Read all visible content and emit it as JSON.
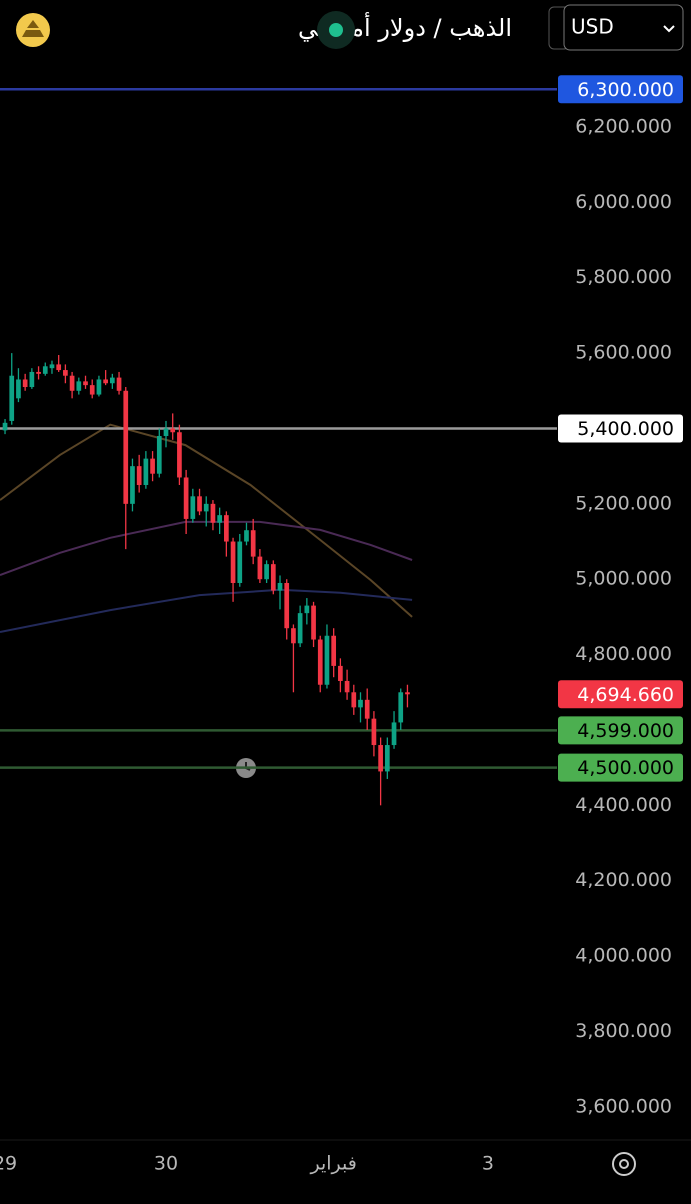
{
  "header": {
    "title": "الذهب / دولار أمريكي",
    "currency": "USD"
  },
  "chart_data": {
    "type": "candlestick",
    "open": [
      5395,
      5420,
      5480,
      5530,
      5510,
      5550,
      5545,
      5560,
      5570,
      5555,
      5540,
      5500,
      5525,
      5515,
      5490,
      5530,
      5520,
      5535,
      5500,
      5200,
      5300,
      5250,
      5320,
      5280,
      5380,
      5400,
      5390,
      5270,
      5160,
      5220,
      5180,
      5200,
      5150,
      5170,
      5100,
      4990,
      5100,
      5130,
      5060,
      5000,
      5040,
      4970,
      4990,
      4870,
      4830,
      4910,
      4930,
      4840,
      4720,
      4850,
      4770,
      4730,
      4700,
      4660,
      4680,
      4630,
      4560,
      4490,
      4560,
      4620,
      4700
    ],
    "high": [
      5425,
      5600,
      5560,
      5545,
      5560,
      5565,
      5575,
      5580,
      5595,
      5570,
      5550,
      5535,
      5540,
      5530,
      5540,
      5555,
      5545,
      5550,
      5510,
      5320,
      5330,
      5340,
      5340,
      5400,
      5420,
      5440,
      5410,
      5290,
      5240,
      5240,
      5220,
      5210,
      5190,
      5180,
      5110,
      5120,
      5150,
      5160,
      5080,
      5050,
      5050,
      5010,
      5000,
      4880,
      4930,
      4950,
      4940,
      4850,
      4880,
      4870,
      4790,
      4760,
      4720,
      4700,
      4710,
      4650,
      4580,
      4580,
      4650,
      4710,
      4720
    ],
    "low": [
      5385,
      5410,
      5470,
      5500,
      5505,
      5530,
      5540,
      5545,
      5550,
      5520,
      5480,
      5490,
      5505,
      5480,
      5485,
      5515,
      5505,
      5490,
      5080,
      5180,
      5230,
      5240,
      5260,
      5270,
      5350,
      5370,
      5250,
      5120,
      5150,
      5170,
      5140,
      5130,
      5120,
      5060,
      4940,
      4980,
      5090,
      5040,
      4990,
      4990,
      4960,
      4920,
      4840,
      4700,
      4820,
      4880,
      4820,
      4700,
      4710,
      4740,
      4700,
      4680,
      4640,
      4620,
      4600,
      4530,
      4400,
      4470,
      4550,
      4600,
      4660
    ],
    "close": [
      5415,
      5540,
      5530,
      5510,
      5550,
      5545,
      5565,
      5570,
      5555,
      5540,
      5500,
      5525,
      5515,
      5490,
      5530,
      5520,
      5535,
      5500,
      5200,
      5300,
      5250,
      5320,
      5280,
      5380,
      5400,
      5390,
      5270,
      5160,
      5220,
      5180,
      5200,
      5150,
      5170,
      5100,
      4990,
      5100,
      5130,
      5060,
      5000,
      5040,
      4970,
      4990,
      4870,
      4830,
      4910,
      4930,
      4840,
      4720,
      4850,
      4770,
      4730,
      4700,
      4660,
      4680,
      4630,
      4560,
      4490,
      4560,
      4620,
      4700,
      4694.66
    ],
    "up_color": "#0ea386",
    "down_color": "#f23645",
    "last_price_label": "4,694.660",
    "ylim": [
      3512,
      6391
    ],
    "yticks": [
      {
        "value": 3600,
        "label": "3,600.000"
      },
      {
        "value": 3800,
        "label": "3,800.000"
      },
      {
        "value": 4000,
        "label": "4,000.000"
      },
      {
        "value": 4200,
        "label": "4,200.000"
      },
      {
        "value": 4400,
        "label": "4,400.000"
      },
      {
        "value": 4600,
        "label": "4,600.000"
      },
      {
        "value": 4800,
        "label": "4,800.000"
      },
      {
        "value": 5000,
        "label": "5,000.000"
      },
      {
        "value": 5200,
        "label": "5,200.000"
      },
      {
        "value": 5400,
        "label": "5,400.000"
      },
      {
        "value": 5600,
        "label": "5,600.000"
      },
      {
        "value": 5800,
        "label": "5,800.000"
      },
      {
        "value": 6000,
        "label": "6,000.000"
      },
      {
        "value": 6200,
        "label": "6,200.000"
      }
    ],
    "xlim": [
      -0.75,
      82
    ],
    "xticks": [
      {
        "value": 0,
        "label": "29"
      },
      {
        "value": 24,
        "label": "30"
      },
      {
        "value": 49,
        "label": "فبراير"
      },
      {
        "value": 72,
        "label": "3"
      }
    ],
    "price_lines": [
      {
        "value": 6300,
        "label": "6,300.000",
        "color": "#2b3aa0",
        "label_bg": "#1f57e0",
        "label_color": "#ffffff"
      },
      {
        "value": 5400,
        "label": "5,400.000",
        "color": "#9a9a9a",
        "label_bg": "#ffffff",
        "label_color": "#000000"
      },
      {
        "value": 4599,
        "label": "4,599.000",
        "color": "#2f5a32",
        "label_bg": "#4caf50",
        "label_color": "#000000"
      },
      {
        "value": 4500,
        "label": "4,500.000",
        "color": "#2f5a32",
        "label_bg": "#4caf50",
        "label_color": "#000000"
      }
    ],
    "moving_averages": [
      {
        "color": "#5a4526",
        "x": [
          -0.75,
          8.2,
          15.7,
          26.9,
          36.6,
          47,
          54.5,
          60.7
        ],
        "values": [
          5210,
          5330,
          5410,
          5356,
          5250,
          5104,
          4998,
          4900
        ]
      },
      {
        "color": "#4a2a55",
        "x": [
          -0.75,
          8.2,
          15.7,
          26.9,
          38,
          47,
          54.5,
          60.7
        ],
        "values": [
          5011,
          5070,
          5110,
          5152,
          5152,
          5131,
          5091,
          5051
        ]
      },
      {
        "color": "#232a5a",
        "x": [
          -0.75,
          15.7,
          29,
          41,
          50,
          60.7
        ],
        "values": [
          4860,
          4918,
          4958,
          4972,
          4964,
          4945
        ]
      }
    ]
  }
}
